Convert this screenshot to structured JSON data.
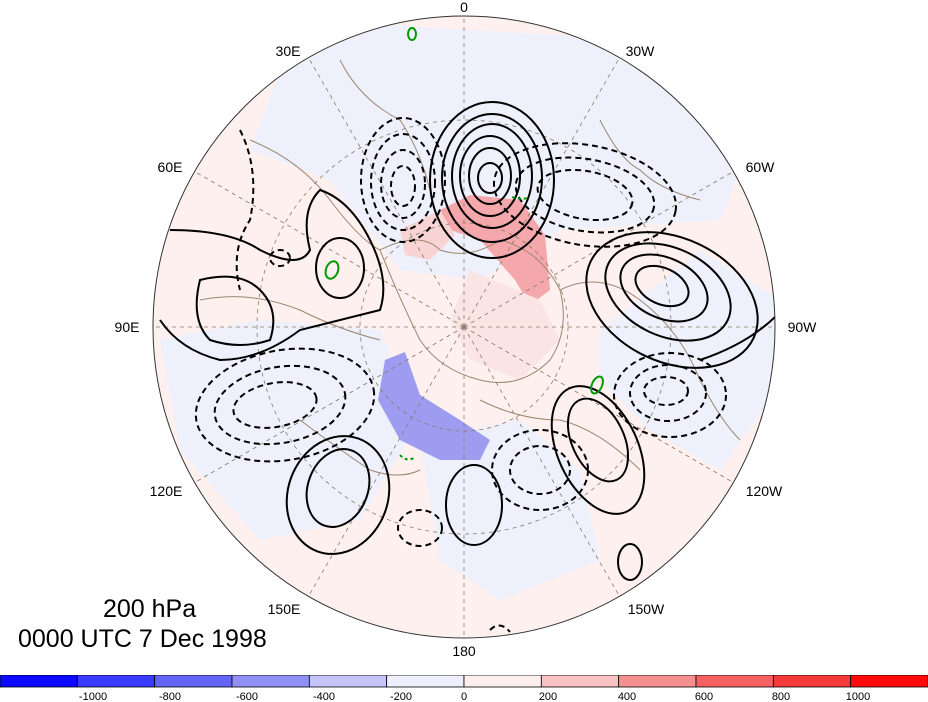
{
  "map": {
    "projection": "north-polar-stereographic",
    "longitude_labels": [
      "0",
      "30W",
      "60W",
      "90W",
      "120W",
      "150W",
      "180",
      "150E",
      "120E",
      "90E",
      "60E",
      "30E"
    ]
  },
  "caption": {
    "level": "200 hPa",
    "time": "0000 UTC 7 Dec 1998"
  },
  "colorbar": {
    "tick_labels": [
      "-1000",
      "-800",
      "-600",
      "-400",
      "-200",
      "0",
      "200",
      "400",
      "600",
      "800",
      "1000"
    ],
    "colors": [
      "#0a0aff",
      "#3a3aff",
      "#6464f5",
      "#9090f5",
      "#c4c4f8",
      "#eeeefc",
      "#fdeeee",
      "#f8c2c2",
      "#f59090",
      "#f56060",
      "#f53a3a",
      "#ff0a0a"
    ]
  },
  "colors": {
    "positive_contour": "#000000",
    "negative_contour": "#000000",
    "zero_contour": "#009900",
    "coastline": "#9b8670",
    "graticule": "#8a7a66",
    "positive_fill": "#f5a0a0",
    "negative_fill": "#9a9af0"
  }
}
